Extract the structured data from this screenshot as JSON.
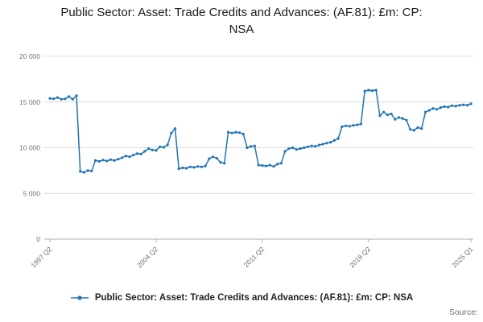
{
  "source_label": "Source:",
  "chart_data": {
    "type": "line",
    "title": "Public Sector: Asset: Trade Credits and Advances: (AF.81): £m: CP: NSA",
    "xlabel": "",
    "ylabel": "",
    "ylim": [
      0,
      20000
    ],
    "grid": "horizontal",
    "legend_position": "bottom",
    "x_start": "1997 Q2",
    "x_end": "2025 Q1",
    "frequency": "quarterly",
    "x_ticks": [
      {
        "label": "1997 Q2",
        "index": 0
      },
      {
        "label": "2004 Q2",
        "index": 28
      },
      {
        "label": "2011 Q2",
        "index": 56
      },
      {
        "label": "2018 Q2",
        "index": 84
      },
      {
        "label": "2025 Q1",
        "index": 111
      }
    ],
    "y_ticks": [
      {
        "value": 0,
        "label": "0"
      },
      {
        "value": 5000,
        "label": "5 000"
      },
      {
        "value": 10000,
        "label": "10 000"
      },
      {
        "value": 15000,
        "label": "15 000"
      },
      {
        "value": 20000,
        "label": "20 000"
      }
    ],
    "series": [
      {
        "name": "Public Sector: Asset: Trade Credits and Advances: (AF.81): £m: CP: NSA",
        "color": "#2074b5",
        "values": [
          15400,
          15350,
          15500,
          15300,
          15350,
          15600,
          15300,
          15700,
          7400,
          7300,
          7500,
          7450,
          8600,
          8500,
          8650,
          8550,
          8700,
          8600,
          8750,
          8900,
          9100,
          9000,
          9200,
          9350,
          9300,
          9600,
          9900,
          9750,
          9700,
          10100,
          10050,
          10300,
          11600,
          12100,
          7700,
          7800,
          7750,
          7900,
          7850,
          7950,
          7900,
          8000,
          8800,
          9000,
          8850,
          8400,
          8300,
          11700,
          11600,
          11700,
          11650,
          11500,
          10000,
          10150,
          10200,
          8100,
          8050,
          8000,
          8100,
          7950,
          8200,
          8300,
          9600,
          9900,
          10000,
          9800,
          9900,
          10000,
          10100,
          10200,
          10150,
          10300,
          10400,
          10500,
          10600,
          10800,
          11000,
          12300,
          12400,
          12350,
          12450,
          12500,
          12600,
          16200,
          16300,
          16250,
          16300,
          13500,
          13900,
          13600,
          13700,
          13100,
          13300,
          13200,
          13000,
          12000,
          11900,
          12200,
          12100,
          13900,
          14100,
          14300,
          14200,
          14400,
          14500,
          14450,
          14600,
          14550,
          14650,
          14700,
          14650,
          14800
        ]
      }
    ]
  }
}
